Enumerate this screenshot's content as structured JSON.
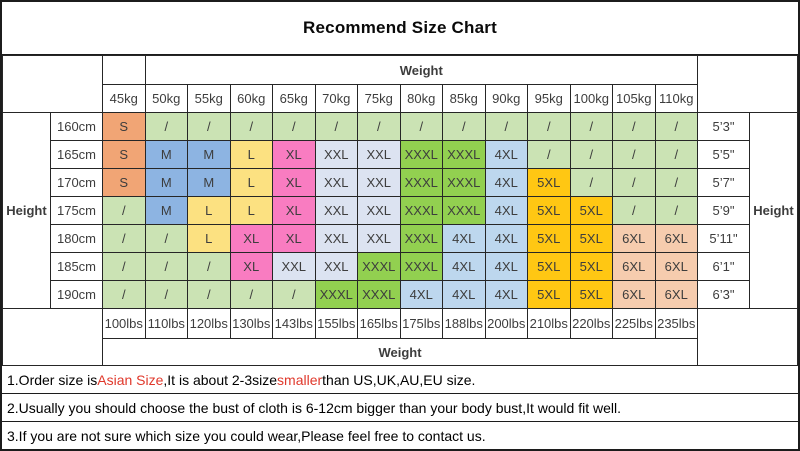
{
  "title": "Recommend Size Chart",
  "labels": {
    "weight_top": "Weight",
    "weight_bottom": "Weight",
    "height_left": "Height",
    "height_right": "Height"
  },
  "chart_data": {
    "type": "table",
    "title": "Recommend Size Chart",
    "weight_columns_kg": [
      "45kg",
      "50kg",
      "55kg",
      "60kg",
      "65kg",
      "70kg",
      "75kg",
      "80kg",
      "85kg",
      "90kg",
      "95kg",
      "100kg",
      "105kg",
      "110kg"
    ],
    "weight_columns_lbs": [
      "100lbs",
      "110lbs",
      "120lbs",
      "130lbs",
      "143lbs",
      "155lbs",
      "165lbs",
      "175lbs",
      "188lbs",
      "200lbs",
      "210lbs",
      "220lbs",
      "225lbs",
      "235lbs"
    ],
    "rows": [
      {
        "height_cm": "160cm",
        "height_ft": "5’3\"",
        "sizes": [
          "S",
          "/",
          "/",
          "/",
          "/",
          "/",
          "/",
          "/",
          "/",
          "/",
          "/",
          "/",
          "/",
          "/"
        ]
      },
      {
        "height_cm": "165cm",
        "height_ft": "5’5\"",
        "sizes": [
          "S",
          "M",
          "M",
          "L",
          "XL",
          "XXL",
          "XXL",
          "XXXL",
          "XXXL",
          "4XL",
          "/",
          "/",
          "/",
          "/"
        ]
      },
      {
        "height_cm": "170cm",
        "height_ft": "5’7\"",
        "sizes": [
          "S",
          "M",
          "M",
          "L",
          "XL",
          "XXL",
          "XXL",
          "XXXL",
          "XXXL",
          "4XL",
          "5XL",
          "/",
          "/",
          "/"
        ]
      },
      {
        "height_cm": "175cm",
        "height_ft": "5’9\"",
        "sizes": [
          "/",
          "M",
          "L",
          "L",
          "XL",
          "XXL",
          "XXL",
          "XXXL",
          "XXXL",
          "4XL",
          "5XL",
          "5XL",
          "/",
          "/"
        ]
      },
      {
        "height_cm": "180cm",
        "height_ft": "5’11\"",
        "sizes": [
          "/",
          "/",
          "L",
          "XL",
          "XL",
          "XXL",
          "XXL",
          "XXXL",
          "4XL",
          "4XL",
          "5XL",
          "5XL",
          "6XL",
          "6XL"
        ]
      },
      {
        "height_cm": "185cm",
        "height_ft": "6’1\"",
        "sizes": [
          "/",
          "/",
          "/",
          "XL",
          "XXL",
          "XXL",
          "XXXL",
          "XXXL",
          "4XL",
          "4XL",
          "5XL",
          "5XL",
          "6XL",
          "6XL"
        ]
      },
      {
        "height_cm": "190cm",
        "height_ft": "6’3\"",
        "sizes": [
          "/",
          "/",
          "/",
          "/",
          "/",
          "XXXL",
          "XXXL",
          "4XL",
          "4XL",
          "4XL",
          "5XL",
          "5XL",
          "6XL",
          "6XL"
        ]
      }
    ],
    "size_colors": {
      "S": "#F1A575",
      "M": "#8DB4E2",
      "L": "#FCE181",
      "XL": "#F97CC1",
      "XXL": "#DCE3F1",
      "XXXL": "#92D050",
      "4XL": "#BDD7EE",
      "5XL": "#FFC713",
      "6XL": "#F6CCAE",
      "/": "#CBE3B4"
    }
  },
  "notes": [
    {
      "segments": [
        {
          "text": "1.Order size is ",
          "color": "#000000"
        },
        {
          "text": "Asian Size",
          "color": "#E0382B"
        },
        {
          "text": ",It is about 2-3size ",
          "color": "#000000"
        },
        {
          "text": "smaller",
          "color": "#E0382B"
        },
        {
          "text": " than US,UK,AU,EU size.",
          "color": "#000000"
        }
      ]
    },
    {
      "segments": [
        {
          "text": "2.Usually you should choose the bust of cloth is 6-12cm bigger than your body bust,It would fit well.",
          "color": "#000000"
        }
      ]
    },
    {
      "segments": [
        {
          "text": "3.If you are not sure which size you could wear,Please feel free to contact us.",
          "color": "#000000"
        }
      ]
    }
  ]
}
